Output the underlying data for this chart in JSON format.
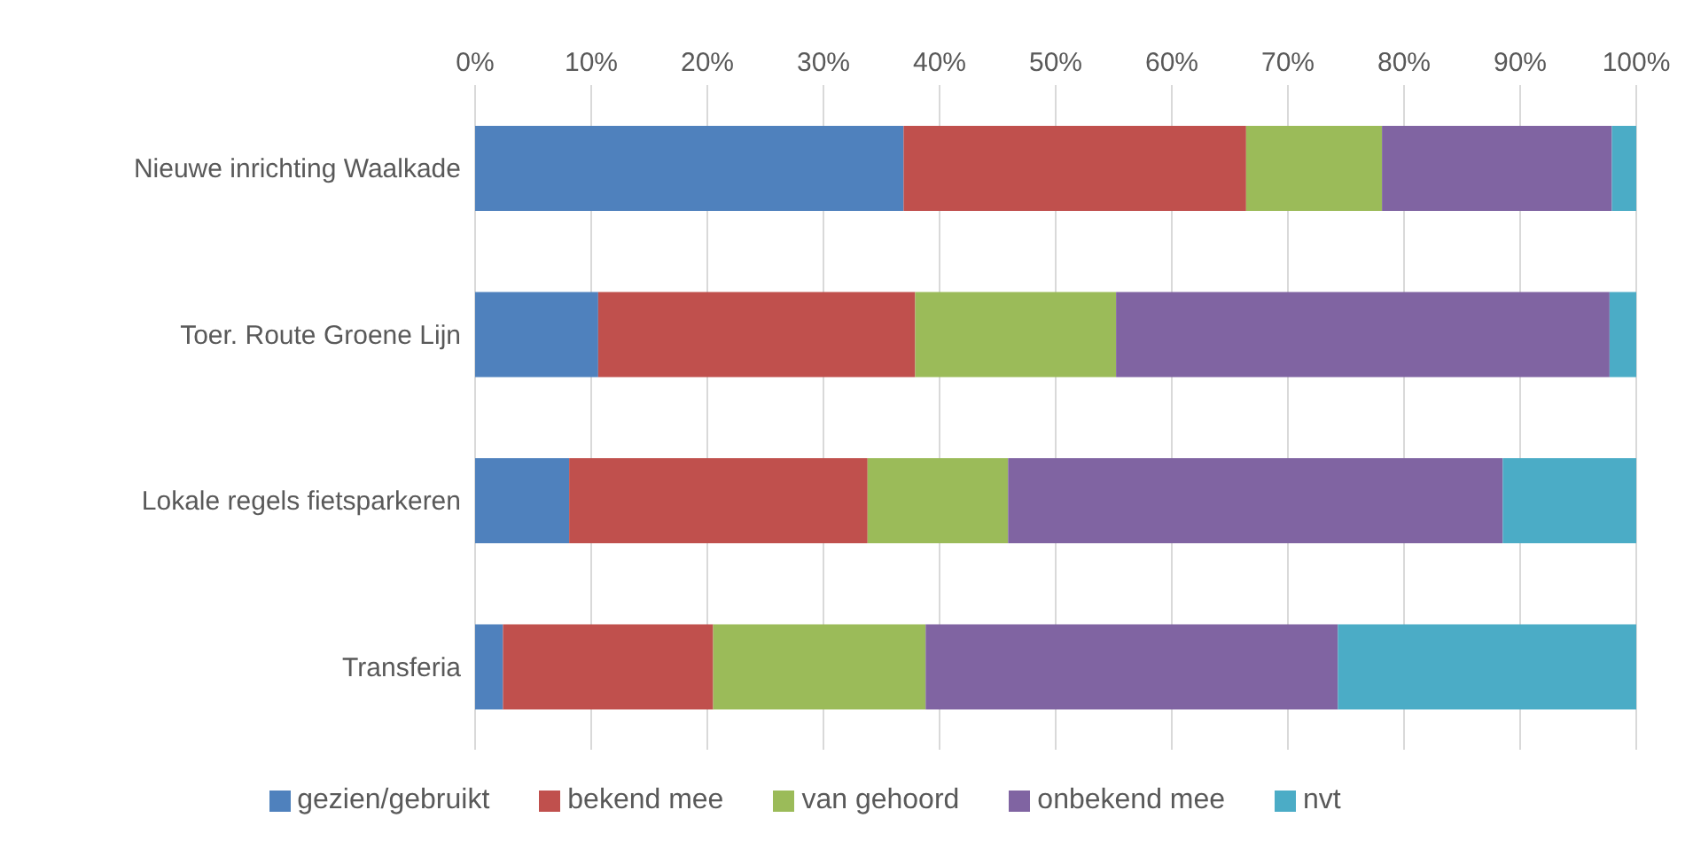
{
  "chart_data": {
    "type": "bar",
    "orientation": "horizontal",
    "stacked": true,
    "categories": [
      "Nieuwe inrichting Waalkade",
      "Toer. Route Groene Lijn",
      "Lokale regels fietsparkeren",
      "Transferia"
    ],
    "series": [
      {
        "name": "gezien/gebruikt",
        "color": "#4f81bd",
        "values": [
          36.9,
          10.6,
          8.1,
          2.4
        ]
      },
      {
        "name": "bekend mee",
        "color": "#c0504d",
        "values": [
          29.5,
          27.3,
          25.7,
          18.1
        ]
      },
      {
        "name": "van gehoord",
        "color": "#9bbb59",
        "values": [
          11.7,
          17.3,
          12.1,
          18.3
        ]
      },
      {
        "name": "onbekend mee",
        "color": "#8064a2",
        "values": [
          19.8,
          42.5,
          42.6,
          35.5
        ]
      },
      {
        "name": "nvt",
        "color": "#4bacc6",
        "values": [
          2.1,
          2.3,
          11.5,
          25.7
        ]
      }
    ],
    "xlim": [
      0,
      100
    ],
    "xticks": [
      {
        "value": 0,
        "label": "0%"
      },
      {
        "value": 10,
        "label": "10%"
      },
      {
        "value": 20,
        "label": "20%"
      },
      {
        "value": 30,
        "label": "30%"
      },
      {
        "value": 40,
        "label": "40%"
      },
      {
        "value": 50,
        "label": "50%"
      },
      {
        "value": 60,
        "label": "60%"
      },
      {
        "value": 70,
        "label": "70%"
      },
      {
        "value": 80,
        "label": "80%"
      },
      {
        "value": 90,
        "label": "90%"
      },
      {
        "value": 100,
        "label": "100%"
      }
    ],
    "grid": "x",
    "legend": "bottom"
  }
}
